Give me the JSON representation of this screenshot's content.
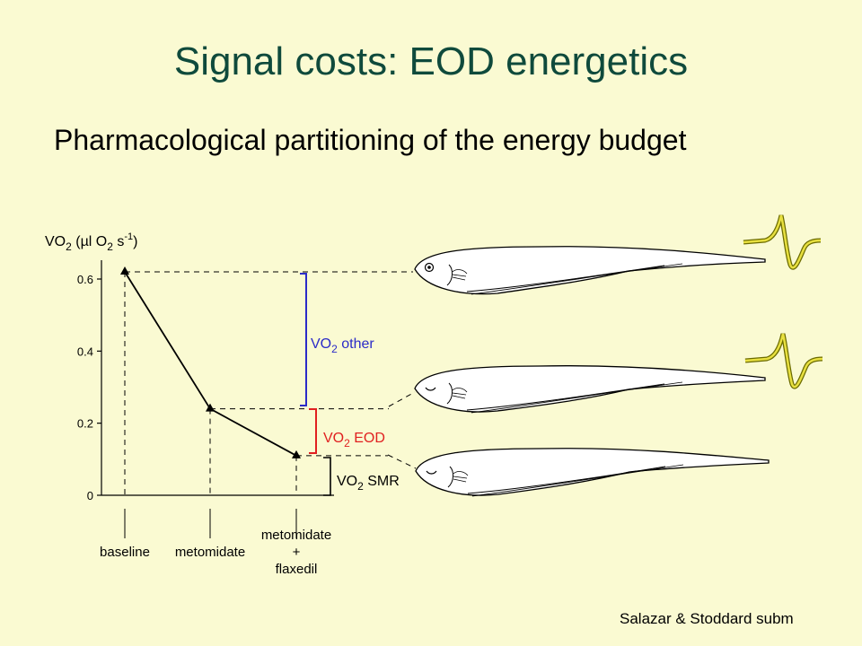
{
  "slide": {
    "title": "Signal costs: EOD energetics",
    "subtitle": "Pharmacological partitioning of the energy budget",
    "citation": "Salazar & Stoddard subm"
  },
  "colors": {
    "background": "#FAFAD2",
    "title": "#0F4A3C",
    "other_bracket": "#2B2BC8",
    "eod_bracket": "#E02020",
    "smr_bracket": "#000000",
    "waveform": "#D8D020"
  },
  "chart_data": {
    "type": "line",
    "ylabel": {
      "base": "VO",
      "sub": "2",
      "mid": " (µl O",
      "sub2": "2",
      "unit": " s",
      "sup": "-1",
      "end": ")"
    },
    "ylim": [
      0,
      0.65
    ],
    "yticks": [
      "0",
      "0.2",
      "0.4",
      "0.6"
    ],
    "ytick_values": [
      0,
      0.2,
      0.4,
      0.6
    ],
    "categories": [
      {
        "lines": [
          "baseline"
        ]
      },
      {
        "lines": [
          "metomidate"
        ]
      },
      {
        "lines": [
          "metomidate",
          "+",
          "flaxedil"
        ]
      }
    ],
    "values": [
      0.62,
      0.24,
      0.11
    ],
    "marker": "triangle",
    "grid": false,
    "annotations": [
      {
        "base": "VO",
        "sub": "2",
        "rest": " other"
      },
      {
        "base": "VO",
        "sub": "2",
        "rest": " EOD"
      },
      {
        "base": "VO",
        "sub": "2",
        "rest": " SMR"
      }
    ],
    "icons": [
      "fish-eye-open-icon",
      "fish-eye-closed-icon",
      "fish-eye-closed-icon",
      "eod-waveform-icon"
    ]
  }
}
